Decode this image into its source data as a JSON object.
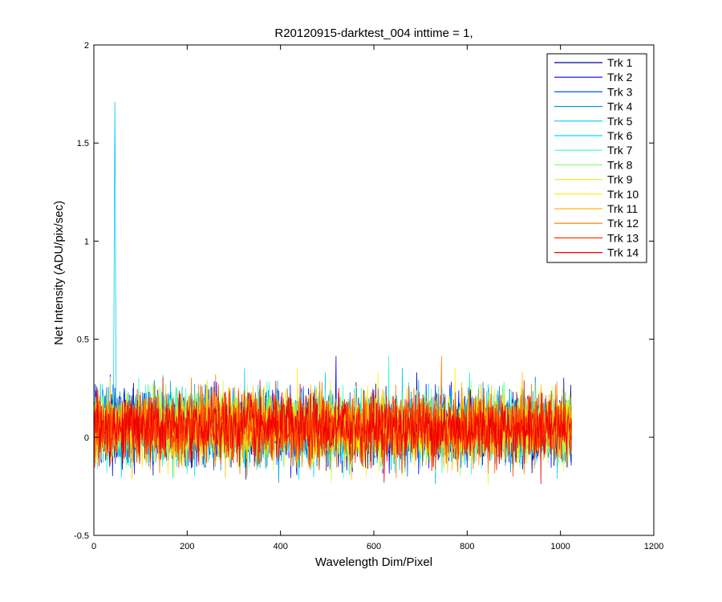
{
  "chart_data": {
    "type": "line",
    "title": "R20120915-darktest_004 inttime = 1,",
    "xlabel": "Wavelength Dim/Pixel",
    "ylabel": "Net Intensity (ADU/pix/sec)",
    "xlim": [
      0,
      1200
    ],
    "ylim": [
      -0.5,
      2
    ],
    "xticks": [
      0,
      200,
      400,
      600,
      800,
      1000,
      1200
    ],
    "xtick_labels": [
      "0",
      "200",
      "400",
      "600",
      "800",
      "1000",
      "1200"
    ],
    "yticks": [
      -0.5,
      0,
      0.5,
      1,
      1.5,
      2
    ],
    "ytick_labels": [
      "-0.5",
      "0",
      "0.5",
      "1",
      "1.5",
      "2"
    ],
    "grid": false,
    "legend_position": "top-right",
    "x_range": [
      1,
      1024
    ],
    "noise_mean": 0.05,
    "noise_range_approx": [
      -0.35,
      0.42
    ],
    "spike": {
      "series": "Trk 5",
      "x": 45,
      "peak": 1.71
    },
    "series": [
      {
        "name": "Trk 1",
        "color": "#0000aa"
      },
      {
        "name": "Trk 2",
        "color": "#0000ff"
      },
      {
        "name": "Trk 3",
        "color": "#0055ff"
      },
      {
        "name": "Trk 4",
        "color": "#0099dd"
      },
      {
        "name": "Trk 5",
        "color": "#00c8ff"
      },
      {
        "name": "Trk 6",
        "color": "#00e0e8"
      },
      {
        "name": "Trk 7",
        "color": "#33ffcc"
      },
      {
        "name": "Trk 8",
        "color": "#88ff77"
      },
      {
        "name": "Trk 9",
        "color": "#ccff33"
      },
      {
        "name": "Trk 10",
        "color": "#ffee00"
      },
      {
        "name": "Trk 11",
        "color": "#ffbb00"
      },
      {
        "name": "Trk 12",
        "color": "#ff7700"
      },
      {
        "name": "Trk 13",
        "color": "#ff3300"
      },
      {
        "name": "Trk 14",
        "color": "#ee0000"
      }
    ]
  }
}
